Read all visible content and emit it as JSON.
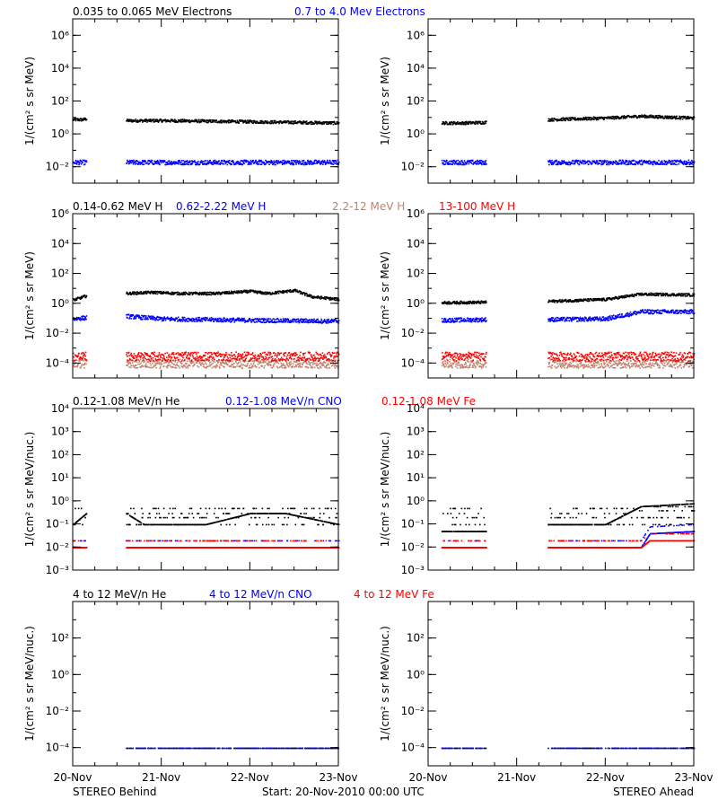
{
  "colors": {
    "black": "#000000",
    "blue": "#0000ff",
    "salmon": "#c0826e",
    "red": "#ff0000"
  },
  "footer": {
    "left": "STEREO Behind",
    "center": "Start: 20-Nov-2010 00:00 UTC",
    "right": "STEREO Ahead"
  },
  "x_ticks": [
    "20-Nov",
    "21-Nov",
    "22-Nov",
    "23-Nov"
  ],
  "chart_data": [
    {
      "type": "scatter",
      "row": "electrons",
      "spacecraft": "STEREO Behind",
      "ylabel": "1/(cm² s sr MeV)",
      "yscale": "log",
      "ylim": [
        0.001,
        10000000
      ],
      "yticks": [
        "10⁻²",
        "10⁰",
        "10²",
        "10⁴",
        "10⁶"
      ],
      "x_unit": "days since 20-Nov-2010 00:00 UTC",
      "xlim": [
        0,
        3
      ],
      "series": [
        {
          "name": "0.035 to 0.065 MeV Electrons",
          "color": "#000000",
          "segments": [
            [
              0,
              0.15
            ],
            [
              0.6,
              3.0
            ]
          ],
          "points": [
            [
              0.0,
              8
            ],
            [
              0.1,
              8
            ],
            [
              0.15,
              9
            ],
            [
              0.6,
              7
            ],
            [
              1.0,
              7
            ],
            [
              1.5,
              6.5
            ],
            [
              2.0,
              6
            ],
            [
              2.5,
              5.5
            ],
            [
              3.0,
              5
            ]
          ]
        },
        {
          "name": "0.7 to 4.0 Mev Electrons",
          "color": "#0000ff",
          "segments": [
            [
              0,
              0.15
            ],
            [
              0.6,
              3.0
            ]
          ],
          "points": [
            [
              0.0,
              0.02
            ],
            [
              0.15,
              0.02
            ],
            [
              0.6,
              0.02
            ],
            [
              1.5,
              0.02
            ],
            [
              3.0,
              0.02
            ]
          ]
        }
      ]
    },
    {
      "type": "scatter",
      "row": "electrons",
      "spacecraft": "STEREO Ahead",
      "ylabel": "1/(cm² s sr MeV)",
      "yscale": "log",
      "ylim": [
        0.001,
        10000000
      ],
      "yticks": [
        "10⁻²",
        "10⁰",
        "10²",
        "10⁴",
        "10⁶"
      ],
      "x_unit": "days since 20-Nov-2010 00:00 UTC",
      "xlim": [
        0,
        3
      ],
      "series": [
        {
          "name": "0.035 to 0.065 MeV Electrons",
          "color": "#000000",
          "segments": [
            [
              0.15,
              0.65
            ],
            [
              1.35,
              3.0
            ]
          ],
          "points": [
            [
              0.15,
              5
            ],
            [
              0.4,
              5
            ],
            [
              0.65,
              5.5
            ],
            [
              1.35,
              8
            ],
            [
              2.0,
              10
            ],
            [
              2.4,
              13
            ],
            [
              3.0,
              10
            ]
          ]
        },
        {
          "name": "0.7 to 4.0 Mev Electrons",
          "color": "#0000ff",
          "segments": [
            [
              0.15,
              0.65
            ],
            [
              1.35,
              3.0
            ]
          ],
          "points": [
            [
              0.15,
              0.02
            ],
            [
              0.65,
              0.02
            ],
            [
              1.35,
              0.02
            ],
            [
              3.0,
              0.02
            ]
          ]
        }
      ]
    },
    {
      "type": "scatter",
      "row": "protons",
      "spacecraft": "STEREO Behind",
      "ylabel": "1/(cm² s sr MeV)",
      "yscale": "log",
      "ylim": [
        1e-05,
        1000000
      ],
      "yticks": [
        "10⁻⁴",
        "10⁻²",
        "10⁰",
        "10²",
        "10⁴",
        "10⁶"
      ],
      "x_unit": "days since 20-Nov-2010 00:00 UTC",
      "xlim": [
        0,
        3
      ],
      "series": [
        {
          "name": "0.14-0.62 MeV H",
          "color": "#000000",
          "segments": [
            [
              0,
              0.15
            ],
            [
              0.6,
              3.0
            ]
          ],
          "points": [
            [
              0.0,
              1.8
            ],
            [
              0.15,
              3.5
            ],
            [
              0.6,
              5
            ],
            [
              0.9,
              6
            ],
            [
              1.2,
              5
            ],
            [
              1.6,
              5
            ],
            [
              2.0,
              7
            ],
            [
              2.2,
              5
            ],
            [
              2.5,
              8
            ],
            [
              2.7,
              3
            ],
            [
              3.0,
              2
            ]
          ]
        },
        {
          "name": "0.62-2.22 MeV H",
          "color": "#0000ff",
          "segments": [
            [
              0,
              0.15
            ],
            [
              0.6,
              3.0
            ]
          ],
          "points": [
            [
              0.0,
              0.1
            ],
            [
              0.15,
              0.12
            ],
            [
              0.6,
              0.15
            ],
            [
              1.0,
              0.1
            ],
            [
              2.0,
              0.08
            ],
            [
              3.0,
              0.07
            ]
          ]
        },
        {
          "name": "2.2-12 MeV H",
          "color": "#c0826e",
          "segments": [
            [
              0,
              0.15
            ],
            [
              0.6,
              3.0
            ]
          ],
          "points": [
            [
              0.0,
              0.0001
            ],
            [
              3.0,
              0.0001
            ]
          ]
        },
        {
          "name": "13-100 MeV H",
          "color": "#ff0000",
          "segments": [
            [
              0,
              0.15
            ],
            [
              0.6,
              3.0
            ]
          ],
          "points": [
            [
              0.0,
              0.0003
            ],
            [
              3.0,
              0.0003
            ]
          ]
        }
      ]
    },
    {
      "type": "scatter",
      "row": "protons",
      "spacecraft": "STEREO Ahead",
      "ylabel": "1/(cm² s sr MeV)",
      "yscale": "log",
      "ylim": [
        1e-05,
        1000000
      ],
      "yticks": [
        "10⁻⁴",
        "10⁻²",
        "10⁰",
        "10²",
        "10⁴",
        "10⁶"
      ],
      "x_unit": "days since 20-Nov-2010 00:00 UTC",
      "xlim": [
        0,
        3
      ],
      "series": [
        {
          "name": "0.14-0.62 MeV H",
          "color": "#000000",
          "segments": [
            [
              0.15,
              0.65
            ],
            [
              1.35,
              3.0
            ]
          ],
          "points": [
            [
              0.15,
              1.2
            ],
            [
              0.65,
              1.3
            ],
            [
              1.35,
              1.5
            ],
            [
              2.0,
              2.0
            ],
            [
              2.4,
              4.5
            ],
            [
              3.0,
              4
            ]
          ]
        },
        {
          "name": "0.62-2.22 MeV H",
          "color": "#0000ff",
          "segments": [
            [
              0.15,
              0.65
            ],
            [
              1.35,
              3.0
            ]
          ],
          "points": [
            [
              0.15,
              0.08
            ],
            [
              0.65,
              0.09
            ],
            [
              1.35,
              0.09
            ],
            [
              2.0,
              0.1
            ],
            [
              2.4,
              0.3
            ],
            [
              3.0,
              0.3
            ]
          ]
        },
        {
          "name": "2.2-12 MeV H",
          "color": "#c0826e",
          "segments": [
            [
              0.15,
              0.65
            ],
            [
              1.35,
              3.0
            ]
          ],
          "points": [
            [
              0.15,
              0.0001
            ],
            [
              3.0,
              0.0001
            ]
          ]
        },
        {
          "name": "13-100 MeV H",
          "color": "#ff0000",
          "segments": [
            [
              0.15,
              0.65
            ],
            [
              1.35,
              3.0
            ]
          ],
          "points": [
            [
              0.15,
              0.0003
            ],
            [
              3.0,
              0.0003
            ]
          ]
        }
      ]
    },
    {
      "type": "scatter",
      "row": "heavy_low",
      "spacecraft": "STEREO Behind",
      "ylabel": "1/(cm² s sr MeV/nuc.)",
      "yscale": "log",
      "ylim": [
        0.001,
        10000
      ],
      "yticks": [
        "10⁻³",
        "10⁻²",
        "10⁻¹",
        "10⁰",
        "10¹",
        "10²",
        "10³",
        "10⁴"
      ],
      "x_unit": "days since 20-Nov-2010 00:00 UTC",
      "xlim": [
        0,
        3
      ],
      "series": [
        {
          "name": "0.12-1.08 MeV/n He",
          "color": "#000000",
          "segments": [
            [
              0,
              0.15
            ],
            [
              0.6,
              3.0
            ]
          ],
          "points": [
            [
              0.0,
              0.1
            ],
            [
              0.15,
              0.3
            ],
            [
              0.6,
              0.3
            ],
            [
              0.8,
              0.1
            ],
            [
              1.5,
              0.1
            ],
            [
              2.0,
              0.3
            ],
            [
              2.4,
              0.3
            ],
            [
              3.0,
              0.1
            ]
          ]
        },
        {
          "name": "0.12-1.08 MeV/n CNO",
          "color": "#0000ff",
          "segments": [
            [
              0,
              0.15
            ],
            [
              0.6,
              3.0
            ]
          ],
          "points": [
            [
              0.0,
              0.01
            ],
            [
              3.0,
              0.01
            ]
          ]
        },
        {
          "name": "0.12-1.08 MeV Fe",
          "color": "#ff0000",
          "segments": [
            [
              0,
              0.15
            ],
            [
              0.6,
              3.0
            ]
          ],
          "points": [
            [
              0.0,
              0.01
            ],
            [
              3.0,
              0.01
            ]
          ]
        }
      ]
    },
    {
      "type": "scatter",
      "row": "heavy_low",
      "spacecraft": "STEREO Ahead",
      "ylabel": "1/(cm² s sr MeV/nuc.)",
      "yscale": "log",
      "ylim": [
        0.001,
        10000
      ],
      "yticks": [
        "10⁻³",
        "10⁻²",
        "10⁻¹",
        "10⁰",
        "10¹",
        "10²",
        "10³",
        "10⁴"
      ],
      "x_unit": "days since 20-Nov-2010 00:00 UTC",
      "xlim": [
        0,
        3
      ],
      "series": [
        {
          "name": "0.12-1.08 MeV/n He",
          "color": "#000000",
          "segments": [
            [
              0.15,
              0.65
            ],
            [
              1.35,
              3.0
            ]
          ],
          "points": [
            [
              0.15,
              0.05
            ],
            [
              0.65,
              0.05
            ],
            [
              1.35,
              0.1
            ],
            [
              2.0,
              0.1
            ],
            [
              2.4,
              0.6
            ],
            [
              3.0,
              0.8
            ]
          ]
        },
        {
          "name": "0.12-1.08 MeV/n CNO",
          "color": "#0000ff",
          "segments": [
            [
              0.15,
              0.65
            ],
            [
              1.35,
              3.0
            ]
          ],
          "points": [
            [
              0.15,
              0.01
            ],
            [
              2.4,
              0.01
            ],
            [
              2.5,
              0.04
            ],
            [
              3.0,
              0.05
            ]
          ]
        },
        {
          "name": "0.12-1.08 MeV Fe",
          "color": "#ff0000",
          "segments": [
            [
              0.15,
              0.65
            ],
            [
              1.35,
              3.0
            ]
          ],
          "points": [
            [
              0.15,
              0.01
            ],
            [
              2.4,
              0.01
            ],
            [
              2.5,
              0.02
            ],
            [
              3.0,
              0.02
            ]
          ]
        }
      ]
    },
    {
      "type": "scatter",
      "row": "heavy_high",
      "spacecraft": "STEREO Behind",
      "ylabel": "1/(cm² s sr MeV/nuc.)",
      "yscale": "log",
      "ylim": [
        1e-05,
        10000
      ],
      "yticks": [
        "10⁻⁴",
        "10⁻²",
        "10⁰",
        "10²"
      ],
      "x_unit": "days since 20-Nov-2010 00:00 UTC",
      "xlim": [
        0,
        3
      ],
      "series": [
        {
          "name": "4 to 12 MeV/n He",
          "color": "#000000",
          "segments": [
            [
              0.6,
              3.0
            ]
          ],
          "points": [
            [
              0.6,
              0.0001
            ],
            [
              3.0,
              0.0001
            ]
          ]
        },
        {
          "name": "4 to 12 MeV/n CNO",
          "color": "#0000ff",
          "segments": [
            [
              0.6,
              3.0
            ]
          ],
          "points": [
            [
              0.6,
              0.0001
            ],
            [
              3.0,
              0.0001
            ]
          ]
        },
        {
          "name": "4 to 12 MeV Fe",
          "color": "#ff0000",
          "segments": [],
          "points": []
        }
      ]
    },
    {
      "type": "scatter",
      "row": "heavy_high",
      "spacecraft": "STEREO Ahead",
      "ylabel": "1/(cm² s sr MeV/nuc.)",
      "yscale": "log",
      "ylim": [
        1e-05,
        10000
      ],
      "yticks": [
        "10⁻⁴",
        "10⁻²",
        "10⁰",
        "10²"
      ],
      "x_unit": "days since 20-Nov-2010 00:00 UTC",
      "xlim": [
        0,
        3
      ],
      "series": [
        {
          "name": "4 to 12 MeV/n He",
          "color": "#000000",
          "segments": [
            [
              0.15,
              0.65
            ],
            [
              1.35,
              3.0
            ]
          ],
          "points": [
            [
              0.15,
              0.0001
            ],
            [
              3.0,
              0.0001
            ]
          ]
        },
        {
          "name": "4 to 12 MeV/n CNO",
          "color": "#0000ff",
          "segments": [
            [
              0.15,
              0.65
            ],
            [
              1.35,
              3.0
            ]
          ],
          "points": [
            [
              0.15,
              0.0001
            ],
            [
              3.0,
              0.0001
            ]
          ]
        },
        {
          "name": "4 to 12 MeV Fe",
          "color": "#ff0000",
          "segments": [],
          "points": []
        }
      ]
    }
  ]
}
